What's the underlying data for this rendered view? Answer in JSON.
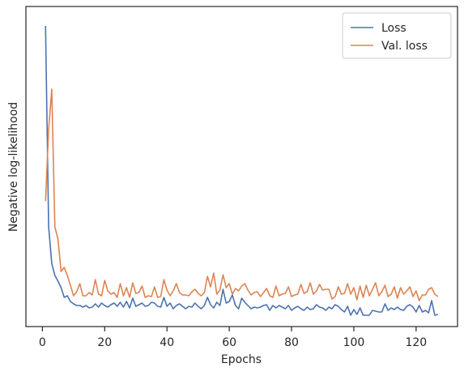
{
  "chart_data": {
    "type": "line",
    "xlabel": "Epochs",
    "ylabel": "Negative log-likelihood",
    "x": [
      1,
      2,
      3,
      4,
      5,
      6,
      7,
      8,
      9,
      10,
      11,
      12,
      13,
      14,
      15,
      16,
      17,
      18,
      19,
      20,
      21,
      22,
      23,
      24,
      25,
      26,
      27,
      28,
      29,
      30,
      31,
      32,
      33,
      34,
      35,
      36,
      37,
      38,
      39,
      40,
      41,
      42,
      43,
      44,
      45,
      46,
      47,
      48,
      49,
      50,
      51,
      52,
      53,
      54,
      55,
      56,
      57,
      58,
      59,
      60,
      61,
      62,
      63,
      64,
      65,
      66,
      67,
      68,
      69,
      70,
      71,
      72,
      73,
      74,
      75,
      76,
      77,
      78,
      79,
      80,
      81,
      82,
      83,
      84,
      85,
      86,
      87,
      88,
      89,
      90,
      91,
      92,
      93,
      94,
      95,
      96,
      97,
      98,
      99,
      100,
      101,
      102,
      103,
      104,
      105,
      106,
      107,
      108,
      109,
      110,
      111,
      112,
      113,
      114,
      115,
      116,
      117,
      118,
      119,
      120,
      121,
      122,
      123,
      124,
      125,
      126,
      127
    ],
    "series": [
      {
        "name": "Loss",
        "color": "#4c72b0",
        "values": [
          371,
          123,
          78,
          63,
          56,
          48,
          36,
          38,
          31,
          28,
          26,
          26,
          24,
          26,
          23,
          24,
          28,
          24,
          29,
          26,
          24,
          27,
          29,
          25,
          30,
          24,
          31,
          23,
          35,
          25,
          27,
          29,
          25,
          26,
          30,
          29,
          25,
          24,
          36,
          25,
          29,
          22,
          26,
          28,
          25,
          22,
          25,
          24,
          29,
          25,
          22,
          26,
          36,
          27,
          23,
          30,
          26,
          46,
          29,
          31,
          39,
          26,
          22,
          35,
          30,
          26,
          22,
          24,
          23,
          24,
          26,
          27,
          20,
          26,
          23,
          26,
          24,
          22,
          26,
          20,
          23,
          25,
          22,
          20,
          24,
          21,
          22,
          27,
          24,
          23,
          20,
          24,
          22,
          27,
          25,
          21,
          18,
          25,
          14,
          21,
          15,
          23,
          14,
          14,
          14,
          20,
          19,
          18,
          18,
          28,
          20,
          23,
          21,
          24,
          21,
          20,
          25,
          27,
          24,
          18,
          26,
          18,
          20,
          17,
          32,
          14,
          15
        ]
      },
      {
        "name": "Val. loss",
        "color": "#dd8452",
        "values": [
          155,
          243,
          293,
          123,
          108,
          68,
          73,
          63,
          51,
          38,
          43,
          53,
          38,
          38,
          42,
          39,
          58,
          40,
          38,
          57,
          44,
          40,
          42,
          36,
          53,
          38,
          48,
          36,
          54,
          41,
          42,
          50,
          36,
          38,
          37,
          49,
          36,
          37,
          58,
          45,
          38,
          44,
          53,
          42,
          39,
          39,
          38,
          43,
          46,
          41,
          38,
          42,
          62,
          49,
          66,
          40,
          45,
          64,
          48,
          53,
          40,
          47,
          44,
          50,
          53,
          45,
          39,
          42,
          43,
          37,
          42,
          47,
          38,
          36,
          50,
          38,
          40,
          41,
          49,
          37,
          39,
          40,
          52,
          41,
          43,
          54,
          40,
          44,
          52,
          45,
          46,
          46,
          34,
          37,
          49,
          40,
          41,
          53,
          40,
          48,
          33,
          50,
          36,
          51,
          38,
          46,
          54,
          38,
          43,
          51,
          37,
          40,
          49,
          35,
          48,
          40,
          44,
          49,
          37,
          44,
          32,
          39,
          39,
          46,
          48,
          40,
          37
        ]
      }
    ],
    "xlim": [
      -5.3,
      133.3
    ],
    "xticks": [
      0,
      20,
      40,
      60,
      80,
      100,
      120
    ],
    "ylim": [
      0,
      395
    ],
    "legend": "upper right"
  }
}
